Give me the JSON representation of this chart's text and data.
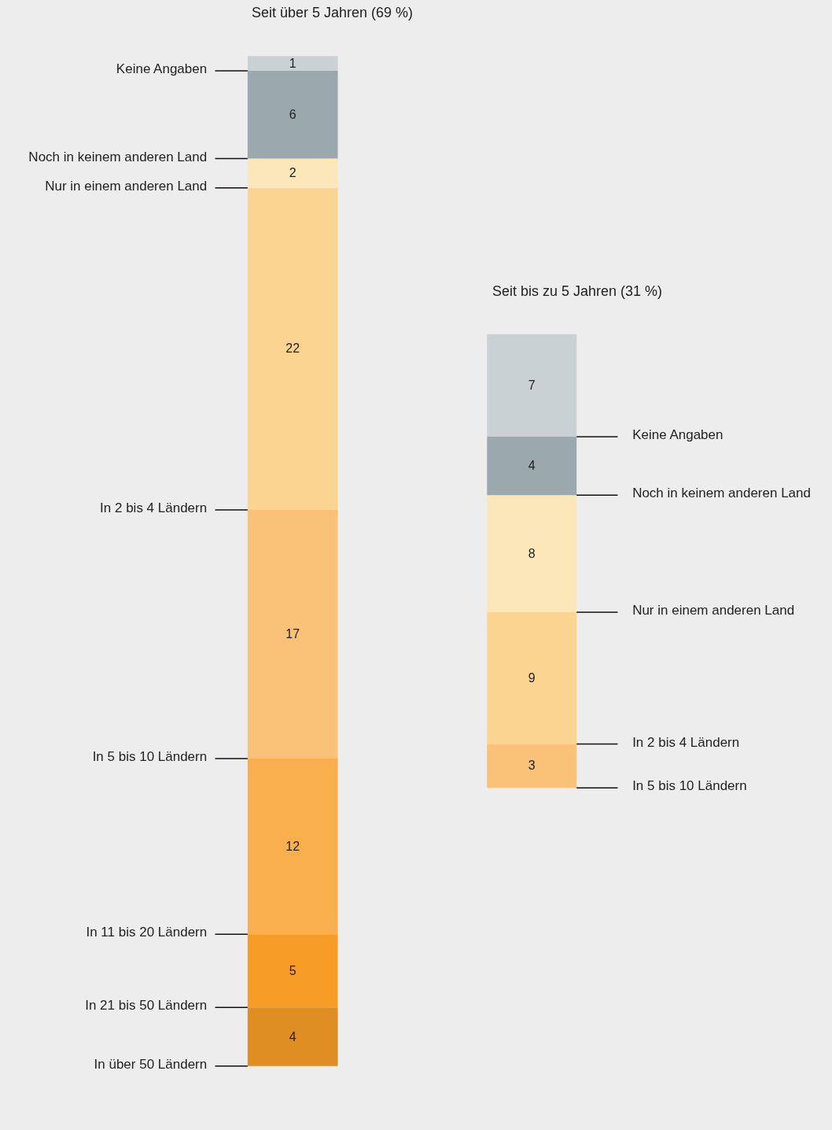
{
  "chart_data": [
    {
      "type": "bar",
      "title": "Seit über 5 Jahren (69 %)",
      "categories": [
        null
      ],
      "stacked": true,
      "data_labels": true,
      "legend": "left",
      "series": [
        {
          "name": "In über 50 Ländern",
          "color": "#df8e23",
          "values": [
            4
          ]
        },
        {
          "name": "In 21 bis 50 Ländern",
          "color": "#f79c27",
          "values": [
            5
          ]
        },
        {
          "name": "In 11 bis 20 Ländern",
          "color": "#f9af4d",
          "values": [
            12
          ]
        },
        {
          "name": "In 5 bis 10 Ländern",
          "color": "#fac179",
          "values": [
            17
          ]
        },
        {
          "name": "In 2 bis 4 Ländern",
          "color": "#fbd491",
          "values": [
            22
          ]
        },
        {
          "name": "Nur in einem anderen Land",
          "color": "#fce7bb",
          "values": [
            2
          ]
        },
        {
          "name": "Noch in keinem anderen Land",
          "color": "#9ba8ae",
          "values": [
            6
          ]
        },
        {
          "name": "Keine Angaben",
          "color": "#c9d1d4",
          "values": [
            1
          ]
        }
      ]
    },
    {
      "type": "bar",
      "title": "Seit bis zu 5 Jahren   (31 %)",
      "categories": [
        null
      ],
      "stacked": true,
      "data_labels": true,
      "legend": "right",
      "series": [
        {
          "name": "In 5 bis 10 Ländern",
          "color": "#fac179",
          "values": [
            3
          ]
        },
        {
          "name": "In 2 bis 4 Ländern",
          "color": "#fbd491",
          "values": [
            9
          ]
        },
        {
          "name": "Nur in einem anderen Land",
          "color": "#fce7bb",
          "values": [
            8
          ]
        },
        {
          "name": "Noch in keinem anderen Land",
          "color": "#9ba8ae",
          "values": [
            4
          ]
        },
        {
          "name": "Keine Angaben",
          "color": "#c9d1d4",
          "values": [
            7
          ]
        }
      ]
    }
  ]
}
